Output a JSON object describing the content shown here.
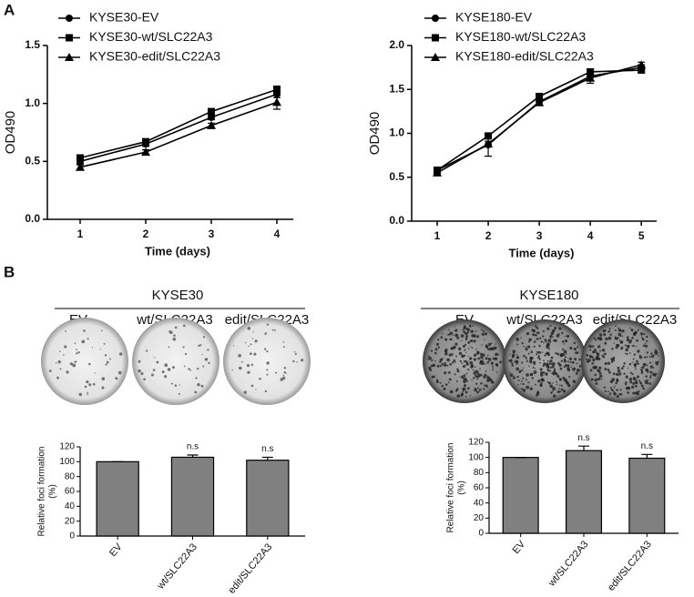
{
  "panel_labels": [
    "A",
    "B"
  ],
  "plates": [
    {
      "group": "KYSE30",
      "labels": [
        "EV",
        "wt/SLC22A3",
        "edit/SLC22A3"
      ]
    },
    {
      "group": "KYSE180",
      "labels": [
        "EV",
        "wt/SLC22A3",
        "edit/SLC22A3"
      ]
    }
  ],
  "chart_data": [
    {
      "type": "line",
      "xlabel": "Time (days)",
      "ylabel": "OD490",
      "x": [
        1,
        2,
        3,
        4
      ],
      "xlim": [
        0.5,
        4.25
      ],
      "xticks": [
        1,
        2,
        3,
        4
      ],
      "ylim": [
        0,
        1.5
      ],
      "yticks": [
        {
          "value": 0,
          "label": "0.0"
        },
        0.5,
        {
          "value": 1,
          "label": "1.0"
        },
        1.5
      ],
      "legend": "top-left",
      "series": [
        {
          "name": "KYSE30-EV",
          "color": "#000000",
          "marker": "circle",
          "values": [
            0.5,
            0.65,
            0.88,
            1.08
          ],
          "errors": [
            0.02,
            0.02,
            0.02,
            0.03
          ]
        },
        {
          "name": "KYSE30-wt/SLC22A3",
          "color": "#000000",
          "marker": "square",
          "values": [
            0.53,
            0.67,
            0.93,
            1.12
          ],
          "errors": [
            0.02,
            0.02,
            0.02,
            0.03
          ]
        },
        {
          "name": "KYSE30-edit/SLC22A3",
          "color": "#000000",
          "marker": "triangle",
          "values": [
            0.45,
            0.58,
            0.81,
            1.01
          ],
          "errors": [
            0.02,
            0.02,
            0.02,
            0.06
          ]
        }
      ]
    },
    {
      "type": "line",
      "xlabel": "Time (days)",
      "ylabel": "OD490",
      "x": [
        1,
        2,
        3,
        4,
        5
      ],
      "xlim": [
        0.5,
        5.3
      ],
      "xticks": [
        1,
        2,
        3,
        4,
        5
      ],
      "ylim": [
        0,
        2
      ],
      "yticks": [
        {
          "value": 0,
          "label": "0.0"
        },
        0.5,
        {
          "value": 1,
          "label": "1.0"
        },
        1.5,
        {
          "value": 2,
          "label": "2.0"
        }
      ],
      "legend": "top-left",
      "series": [
        {
          "name": "KYSE180-EV",
          "color": "#000000",
          "marker": "circle",
          "values": [
            0.58,
            0.87,
            1.36,
            1.65,
            1.75
          ],
          "errors": [
            0.02,
            0.13,
            0.03,
            0.08,
            0.03
          ]
        },
        {
          "name": "KYSE180-wt/SLC22A3",
          "color": "#000000",
          "marker": "square",
          "values": [
            0.58,
            0.97,
            1.42,
            1.7,
            1.72
          ],
          "errors": [
            0.02,
            0.03,
            0.03,
            0.03,
            0.03
          ]
        },
        {
          "name": "KYSE180-edit/SLC22A3",
          "color": "#000000",
          "marker": "triangle",
          "values": [
            0.55,
            0.88,
            1.35,
            1.63,
            1.78
          ],
          "errors": [
            0.02,
            0.03,
            0.03,
            0.03,
            0.03
          ]
        }
      ]
    },
    {
      "type": "bar",
      "ylabel": [
        "Relative foci formation",
        "(%)"
      ],
      "categories": [
        "EV",
        "wt/SLC22A3",
        "edit/SLC22A3"
      ],
      "values": [
        100,
        106,
        102
      ],
      "errors": [
        0,
        3,
        4
      ],
      "annotations": [
        null,
        "n.s",
        "n.s"
      ],
      "color": "#808080",
      "ylim": [
        0,
        120
      ],
      "yticks": [
        0,
        20,
        40,
        60,
        80,
        100,
        120
      ]
    },
    {
      "type": "bar",
      "ylabel": [
        "Relative foci formation",
        "(%)"
      ],
      "categories": [
        "EV",
        "wt/SLC22A3",
        "edit/SLC22A3"
      ],
      "values": [
        100,
        109,
        99
      ],
      "errors": [
        0,
        6,
        5
      ],
      "annotations": [
        null,
        "n.s",
        "n.s"
      ],
      "color": "#808080",
      "ylim": [
        0,
        120
      ],
      "yticks": [
        0,
        20,
        40,
        60,
        80,
        100,
        120
      ]
    }
  ]
}
